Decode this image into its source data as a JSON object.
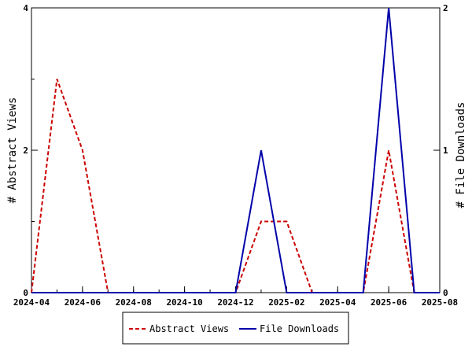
{
  "chart_data": {
    "type": "line",
    "title": "",
    "xlabel": "",
    "y_left_label": "# Abstract Views",
    "y_right_label": "# File Downloads",
    "x_ticks": [
      "2024-04",
      "2024-06",
      "2024-08",
      "2024-10",
      "2024-12",
      "2025-02",
      "2025-04",
      "2025-06",
      "2025-08"
    ],
    "x_range": [
      "2024-04",
      "2025-08"
    ],
    "y_left_ticks": [
      "0",
      "2",
      "4"
    ],
    "y_left_range": [
      0,
      4
    ],
    "y_right_ticks": [
      "0",
      "1",
      "2"
    ],
    "y_right_range": [
      0,
      2
    ],
    "grid": false,
    "legend_placement": "bottom-center",
    "series": [
      {
        "name": "Abstract Views",
        "axis": "left",
        "style": "dashed",
        "color": "#cc0000",
        "x": [
          "2024-04",
          "2024-05",
          "2024-06",
          "2024-07",
          "2024-08",
          "2024-09",
          "2024-10",
          "2024-11",
          "2024-12",
          "2025-01",
          "2025-02",
          "2025-03",
          "2025-04",
          "2025-05",
          "2025-06",
          "2025-07",
          "2025-08"
        ],
        "values": [
          0,
          3,
          2,
          0,
          0,
          0,
          0,
          0,
          0,
          1,
          1,
          0,
          0,
          0,
          2,
          0,
          0
        ]
      },
      {
        "name": "File Downloads",
        "axis": "right",
        "style": "solid",
        "color": "#0000aa",
        "x": [
          "2024-04",
          "2024-05",
          "2024-06",
          "2024-07",
          "2024-08",
          "2024-09",
          "2024-10",
          "2024-11",
          "2024-12",
          "2025-01",
          "2025-02",
          "2025-03",
          "2025-04",
          "2025-05",
          "2025-06",
          "2025-07",
          "2025-08"
        ],
        "values": [
          0,
          0,
          0,
          0,
          0,
          0,
          0,
          0,
          0,
          1,
          0,
          0,
          0,
          0,
          2,
          0,
          0
        ]
      }
    ]
  }
}
